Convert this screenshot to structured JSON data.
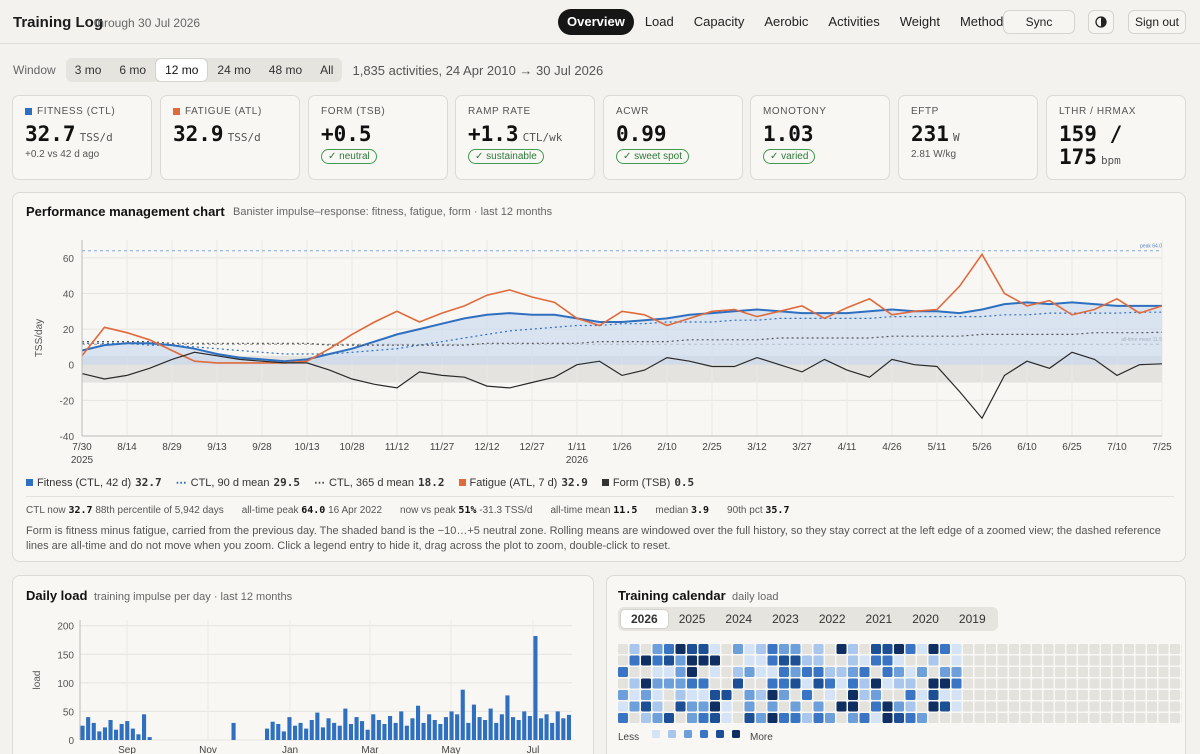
{
  "header": {
    "brand": "Training Log",
    "subtitle": "through 30 Jul 2026",
    "nav": [
      "Overview",
      "Load",
      "Capacity",
      "Aerobic",
      "Activities",
      "Weight",
      "Methods"
    ],
    "sync_label": "Sync",
    "theme_icon": "half-circle-icon",
    "signout_label": "Sign out"
  },
  "window": {
    "label": "Window",
    "options": [
      "3 mo",
      "6 mo",
      "12 mo",
      "24 mo",
      "48 mo",
      "All"
    ],
    "selected": "12 mo",
    "info": "1,835 activities, 24 Apr 2010 → 30 Jul 2026"
  },
  "kpis": [
    {
      "label": "FITNESS (CTL)",
      "value": "32.7",
      "unit": "TSS/d",
      "note": "+0.2 vs 42 d ago",
      "color": "#2f6fbf"
    },
    {
      "label": "FATIGUE (ATL)",
      "value": "32.9",
      "unit": "TSS/d",
      "color": "#e06a3b"
    },
    {
      "label": "FORM (TSB)",
      "value": "+0.5",
      "badge": "neutral"
    },
    {
      "label": "RAMP RATE",
      "value": "+1.3",
      "unit": "CTL/wk",
      "badge": "sustainable"
    },
    {
      "label": "ACWR",
      "value": "0.99",
      "badge": "sweet spot"
    },
    {
      "label": "MONOTONY",
      "value": "1.03",
      "badge": "varied"
    },
    {
      "label": "EFTP",
      "value": "231",
      "unit": "W",
      "note": "2.81 W/kg"
    },
    {
      "label": "LTHR / HRMAX",
      "value": "159 /",
      "value2": "175",
      "unit": "bpm"
    }
  ],
  "pmc": {
    "title": "Performance management chart",
    "subtitle": "Banister impulse–response: fitness, fatigue, form · last 12 months",
    "legend": [
      {
        "label": "Fitness (CTL, 42 d)",
        "value": "32.7",
        "color": "#2f6fbf"
      },
      {
        "label": "CTL, 90 d mean",
        "value": "29.5",
        "color": "#2f6fbf"
      },
      {
        "label": "CTL, 365 d mean",
        "value": "18.2",
        "color": "#555555"
      },
      {
        "label": "Fatigue (ATL, 7 d)",
        "value": "32.9",
        "color": "#e06a3b"
      },
      {
        "label": "Form (TSB)",
        "value": "0.5",
        "color": "#333333"
      }
    ],
    "stats": [
      {
        "k": "CTL now",
        "v": "32.7",
        "x": "88th percentile of 5,942 days"
      },
      {
        "k": "all-time peak",
        "v": "64.0",
        "x": "16 Apr 2022"
      },
      {
        "k": "now vs peak",
        "v": "51%",
        "x": "-31.3 TSS/d"
      },
      {
        "k": "all-time mean",
        "v": "11.5",
        "x": ""
      },
      {
        "k": "median",
        "v": "3.9",
        "x": ""
      },
      {
        "k": "90th pct",
        "v": "35.7",
        "x": ""
      }
    ],
    "description": "Form is fitness minus fatigue, carried from the previous day. The shaded band is the −10…+5 neutral zone. Rolling means are windowed over the full history, so they stay correct at the left edge of a zoomed view; the dashed reference lines are all-time and do not move when you zoom. Click a legend entry to hide it, drag across the plot to zoom, double-click to reset.",
    "ref_labels": [
      "peak 64.0",
      "all-time mean 11.5"
    ]
  },
  "daily": {
    "title": "Daily load",
    "subtitle": "training impulse per day · last 12 months"
  },
  "calendar": {
    "title": "Training calendar",
    "subtitle": "daily load",
    "years": [
      "2026",
      "2025",
      "2024",
      "2023",
      "2022",
      "2021",
      "2020",
      "2019"
    ],
    "selected": "2026",
    "less_label": "Less",
    "more_label": "More",
    "scale_colors": [
      "#d4e3f5",
      "#a9c7ec",
      "#6d9fdb",
      "#3a74c4",
      "#1d4f96",
      "#0f2f63"
    ]
  },
  "chart_data": [
    {
      "type": "line",
      "x_ticks": [
        "7/30",
        "8/14",
        "8/29",
        "9/13",
        "9/28",
        "10/13",
        "10/28",
        "11/12",
        "11/27",
        "12/12",
        "12/27",
        "1/11",
        "1/26",
        "2/10",
        "2/25",
        "3/12",
        "3/27",
        "4/11",
        "4/26",
        "5/11",
        "5/26",
        "6/10",
        "6/25",
        "7/10",
        "7/25"
      ],
      "x_year_labels": [
        "2025",
        "2026"
      ],
      "ylabel": "TSS/day",
      "ylim": [
        -40,
        70
      ],
      "yticks": [
        -40,
        -20,
        0,
        20,
        40,
        60
      ],
      "neutral_band": [
        -10,
        5
      ],
      "reference_lines": [
        64.0,
        11.5
      ],
      "series": [
        {
          "name": "Fitness (CTL, 42 d)",
          "values": [
            8,
            11,
            12,
            12,
            11,
            9,
            6,
            4,
            3,
            2,
            3,
            6,
            9,
            13,
            17,
            20,
            23,
            26,
            28,
            29,
            28,
            28,
            26,
            24,
            24,
            25,
            26,
            28,
            29,
            30,
            31,
            30,
            29,
            29,
            29,
            30,
            31,
            30,
            30,
            29,
            31,
            34,
            35,
            34,
            35,
            34,
            33,
            33,
            33
          ]
        },
        {
          "name": "CTL, 90 d mean",
          "values": [
            12,
            12,
            12,
            11,
            11,
            10,
            9,
            8,
            7,
            6,
            6,
            6,
            7,
            8,
            9,
            11,
            13,
            15,
            17,
            19,
            20,
            21,
            22,
            22,
            23,
            23,
            24,
            24,
            24,
            25,
            25,
            26,
            26,
            26,
            26,
            26,
            27,
            27,
            27,
            27,
            27,
            28,
            28,
            29,
            29,
            29,
            29,
            29.5,
            29.5
          ]
        },
        {
          "name": "CTL, 365 d mean",
          "values": [
            13,
            13,
            13,
            13,
            12,
            12,
            12,
            12,
            12,
            12,
            12,
            11,
            11,
            11,
            11,
            11,
            11,
            11,
            12,
            12,
            12,
            12,
            12,
            13,
            13,
            13,
            13,
            14,
            14,
            14,
            14,
            15,
            15,
            15,
            15,
            15,
            16,
            16,
            16,
            16,
            17,
            17,
            17,
            17,
            17,
            18,
            18,
            18,
            18.2
          ]
        },
        {
          "name": "Fatigue (ATL, 7 d)",
          "values": [
            5,
            21,
            18,
            14,
            8,
            2,
            1,
            1,
            1,
            1,
            2,
            9,
            17,
            24,
            30,
            24,
            29,
            33,
            39,
            42,
            38,
            35,
            26,
            22,
            30,
            28,
            22,
            26,
            30,
            31,
            27,
            30,
            33,
            26,
            32,
            37,
            28,
            30,
            31,
            44,
            62,
            40,
            33,
            36,
            28,
            31,
            37,
            29,
            33
          ]
        },
        {
          "name": "Form (TSB)",
          "values": [
            -5,
            -8,
            -6,
            -2,
            3,
            7,
            5,
            3,
            2,
            1,
            1,
            -3,
            -8,
            -11,
            -13,
            -4,
            -6,
            -7,
            -12,
            -13,
            -10,
            -7,
            0,
            2,
            -6,
            -3,
            4,
            2,
            -1,
            -1,
            4,
            0,
            -4,
            3,
            -3,
            -7,
            3,
            0,
            -1,
            -15,
            -30,
            -6,
            2,
            -2,
            7,
            3,
            -6,
            0,
            0.5
          ]
        }
      ]
    },
    {
      "type": "bar",
      "ylabel": "load",
      "ylim": [
        0,
        210
      ],
      "yticks": [
        0,
        50,
        100,
        150,
        200
      ],
      "x_ticks": [
        "Sep",
        "Nov",
        "Jan",
        "Mar",
        "May",
        "Jul"
      ],
      "values": [
        25,
        40,
        30,
        15,
        22,
        35,
        18,
        28,
        33,
        20,
        10,
        45,
        5,
        0,
        0,
        0,
        0,
        0,
        0,
        0,
        0,
        0,
        0,
        0,
        0,
        0,
        0,
        30,
        0,
        0,
        0,
        0,
        0,
        20,
        32,
        28,
        15,
        40,
        25,
        30,
        20,
        35,
        48,
        22,
        38,
        30,
        25,
        55,
        28,
        40,
        33,
        18,
        45,
        35,
        28,
        42,
        30,
        50,
        25,
        38,
        60,
        30,
        45,
        35,
        28,
        40,
        50,
        45,
        88,
        30,
        62,
        40,
        35,
        55,
        30,
        45,
        78,
        40,
        35,
        50,
        42,
        182,
        38,
        45,
        30,
        50,
        38,
        44
      ]
    }
  ]
}
